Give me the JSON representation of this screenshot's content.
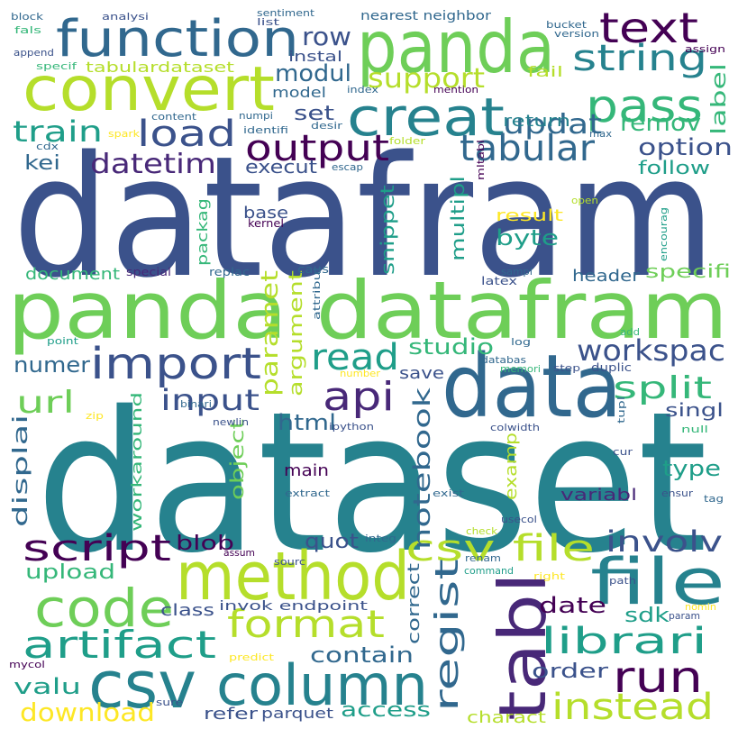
{
  "palette": {
    "deep_purple": "#440154",
    "indigo": "#3b528b",
    "blue": "#31688e",
    "teal_blue": "#26828e",
    "teal": "#1f9e89",
    "green": "#35b779",
    "lime": "#6ece58",
    "yellow_green": "#b5de2b",
    "yellow": "#fde725",
    "navy_purple": "#482878",
    "background": "#ffffff"
  },
  "words": [
    {
      "text": "datafram",
      "color": "#3b528b"
    },
    {
      "text": "dataset",
      "color": "#26828e"
    },
    {
      "text": "panda datafram",
      "color": "#6ece58"
    },
    {
      "text": "panda",
      "color": "#6ece58"
    },
    {
      "text": "convert",
      "color": "#b5de2b"
    },
    {
      "text": "function",
      "color": "#31688e"
    },
    {
      "text": "data",
      "color": "#31688e"
    },
    {
      "text": "method",
      "color": "#b5de2b"
    },
    {
      "text": "file",
      "color": "#26828e"
    },
    {
      "text": "tabl",
      "color": "#482878"
    },
    {
      "text": "csv",
      "color": "#26828e"
    },
    {
      "text": "column",
      "color": "#26828e"
    },
    {
      "text": "code",
      "color": "#6ece58"
    },
    {
      "text": "creat",
      "color": "#26828e"
    },
    {
      "text": "text",
      "color": "#440154"
    },
    {
      "text": "pass",
      "color": "#35b779"
    },
    {
      "text": "string",
      "color": "#26828e"
    },
    {
      "text": "tabular",
      "color": "#31688e"
    },
    {
      "text": "import",
      "color": "#3b528b"
    },
    {
      "text": "api",
      "color": "#482878"
    },
    {
      "text": "output",
      "color": "#440154"
    },
    {
      "text": "load",
      "color": "#3b528b"
    },
    {
      "text": "csv file",
      "color": "#b5de2b"
    },
    {
      "text": "format",
      "color": "#b5de2b"
    },
    {
      "text": "artifact",
      "color": "#1f9e89"
    },
    {
      "text": "script",
      "color": "#440154"
    },
    {
      "text": "run",
      "color": "#440154"
    },
    {
      "text": "librari",
      "color": "#1f9e89"
    },
    {
      "text": "instead",
      "color": "#b5de2b"
    },
    {
      "text": "regist",
      "color": "#31688e"
    },
    {
      "text": "workspac",
      "color": "#3b528b"
    },
    {
      "text": "read",
      "color": "#1f9e89"
    },
    {
      "text": "notebook",
      "color": "#31688e"
    },
    {
      "text": "involv",
      "color": "#3b528b"
    },
    {
      "text": "split",
      "color": "#35b779"
    },
    {
      "text": "input",
      "color": "#3b528b"
    },
    {
      "text": "url",
      "color": "#6ece58"
    },
    {
      "text": "train",
      "color": "#1f9e89"
    },
    {
      "text": "datetim",
      "color": "#482878"
    },
    {
      "text": "row",
      "color": "#3b528b"
    },
    {
      "text": "updat",
      "color": "#31688e"
    },
    {
      "text": "remov",
      "color": "#35b779"
    },
    {
      "text": "option",
      "color": "#3b528b"
    },
    {
      "text": "label",
      "color": "#35b779"
    },
    {
      "text": "support",
      "color": "#b5de2b"
    },
    {
      "text": "modul",
      "color": "#31688e"
    },
    {
      "text": "model",
      "color": "#31688e"
    },
    {
      "text": "set",
      "color": "#3b528b"
    },
    {
      "text": "kei",
      "color": "#31688e"
    },
    {
      "text": "execut",
      "color": "#3b528b"
    },
    {
      "text": "follow",
      "color": "#1f9e89"
    },
    {
      "text": "tabulardataset",
      "color": "#b5de2b"
    },
    {
      "text": "instal",
      "color": "#3b528b"
    },
    {
      "text": "fail",
      "color": "#b5de2b"
    },
    {
      "text": "return",
      "color": "#26828e"
    },
    {
      "text": "nearest neighbor",
      "color": "#31688e"
    },
    {
      "text": "paramet",
      "color": "#b5de2b"
    },
    {
      "text": "argument",
      "color": "#b5de2b"
    },
    {
      "text": "snippet",
      "color": "#1f9e89"
    },
    {
      "text": "multipl",
      "color": "#1f9e89"
    },
    {
      "text": "byte",
      "color": "#1f9e89"
    },
    {
      "text": "result",
      "color": "#fde725"
    },
    {
      "text": "header",
      "color": "#31688e"
    },
    {
      "text": "specifi",
      "color": "#6ece58"
    },
    {
      "text": "studio",
      "color": "#35b779"
    },
    {
      "text": "numer",
      "color": "#31688e"
    },
    {
      "text": "save",
      "color": "#3b528b"
    },
    {
      "text": "html",
      "color": "#31688e"
    },
    {
      "text": "singl",
      "color": "#3b528b"
    },
    {
      "text": "displai",
      "color": "#31688e"
    },
    {
      "text": "workaround",
      "color": "#35b779"
    },
    {
      "text": "object",
      "color": "#6ece58"
    },
    {
      "text": "main",
      "color": "#440154"
    },
    {
      "text": "type",
      "color": "#1f9e89"
    },
    {
      "text": "variabl",
      "color": "#482878"
    },
    {
      "text": "examp",
      "color": "#b5de2b"
    },
    {
      "text": "quot",
      "color": "#3b528b"
    },
    {
      "text": "blob",
      "color": "#440154"
    },
    {
      "text": "upload",
      "color": "#35b779"
    },
    {
      "text": "date",
      "color": "#440154"
    },
    {
      "text": "sdk",
      "color": "#1f9e89"
    },
    {
      "text": "contain",
      "color": "#31688e"
    },
    {
      "text": "order",
      "color": "#3b528b"
    },
    {
      "text": "class",
      "color": "#3b528b"
    },
    {
      "text": "valu",
      "color": "#1f9e89"
    },
    {
      "text": "correct",
      "color": "#31688e"
    },
    {
      "text": "access",
      "color": "#1f9e89"
    },
    {
      "text": "download",
      "color": "#fde725"
    },
    {
      "text": "refer",
      "color": "#3b528b"
    },
    {
      "text": "parquet",
      "color": "#3b528b"
    },
    {
      "text": "charact",
      "color": "#b5de2b"
    },
    {
      "text": "base",
      "color": "#3b528b"
    },
    {
      "text": "packag",
      "color": "#35b779"
    },
    {
      "text": "document",
      "color": "#35b779"
    },
    {
      "text": "special",
      "color": "#482878"
    },
    {
      "text": "replac",
      "color": "#31688e"
    },
    {
      "text": "kernel",
      "color": "#440154"
    },
    {
      "text": "caus",
      "color": "#31688e"
    },
    {
      "text": "attribut",
      "color": "#31688e"
    },
    {
      "text": "latex",
      "color": "#3b528b"
    },
    {
      "text": "sampl",
      "color": "#31688e"
    },
    {
      "text": "log",
      "color": "#31688e"
    },
    {
      "text": "databas",
      "color": "#31688e"
    },
    {
      "text": "memori",
      "color": "#35b779"
    },
    {
      "text": "step",
      "color": "#3b528b"
    },
    {
      "text": "duplic",
      "color": "#3b528b"
    },
    {
      "text": "add",
      "color": "#35b779"
    },
    {
      "text": "point",
      "color": "#1f9e89"
    },
    {
      "text": "number",
      "color": "#fde725"
    },
    {
      "text": "binari",
      "color": "#31688e"
    },
    {
      "text": "newlin",
      "color": "#3b528b"
    },
    {
      "text": "ipython",
      "color": "#3b528b"
    },
    {
      "text": "colwidth",
      "color": "#3b528b"
    },
    {
      "text": "null",
      "color": "#35b779"
    },
    {
      "text": "tupl",
      "color": "#31688e"
    },
    {
      "text": "zip",
      "color": "#fde725"
    },
    {
      "text": "cur",
      "color": "#3b528b"
    },
    {
      "text": "extract",
      "color": "#31688e"
    },
    {
      "text": "exist",
      "color": "#31688e"
    },
    {
      "text": "ensur",
      "color": "#3b528b"
    },
    {
      "text": "tag",
      "color": "#31688e"
    },
    {
      "text": "check",
      "color": "#b5de2b"
    },
    {
      "text": "usecol",
      "color": "#3b528b"
    },
    {
      "text": "sourc",
      "color": "#3b528b"
    },
    {
      "text": "integ",
      "color": "#31688e"
    },
    {
      "text": "assum",
      "color": "#440154"
    },
    {
      "text": "renam",
      "color": "#31688e"
    },
    {
      "text": "command",
      "color": "#1f9e89"
    },
    {
      "text": "right",
      "color": "#fde725"
    },
    {
      "text": "path",
      "color": "#3b528b"
    },
    {
      "text": "nomin",
      "color": "#fde725"
    },
    {
      "text": "param",
      "color": "#3b528b"
    },
    {
      "text": "invok endpoint",
      "color": "#3b528b"
    },
    {
      "text": "predict",
      "color": "#fde725"
    },
    {
      "text": "mycol",
      "color": "#440154"
    },
    {
      "text": "sure",
      "color": "#3b528b"
    },
    {
      "text": "block",
      "color": "#31688e"
    },
    {
      "text": "analysi",
      "color": "#3b528b"
    },
    {
      "text": "sentiment",
      "color": "#31688e"
    },
    {
      "text": "list",
      "color": "#3b528b"
    },
    {
      "text": "fals",
      "color": "#35b779"
    },
    {
      "text": "append",
      "color": "#3b528b"
    },
    {
      "text": "specif",
      "color": "#35b779"
    },
    {
      "text": "bucket",
      "color": "#31688e"
    },
    {
      "text": "version",
      "color": "#31688e"
    },
    {
      "text": "assign",
      "color": "#440154"
    },
    {
      "text": "index",
      "color": "#31688e"
    },
    {
      "text": "mention",
      "color": "#440154"
    },
    {
      "text": "content",
      "color": "#31688e"
    },
    {
      "text": "numpi",
      "color": "#31688e"
    },
    {
      "text": "identifi",
      "color": "#31688e"
    },
    {
      "text": "desir",
      "color": "#31688e"
    },
    {
      "text": "max",
      "color": "#31688e"
    },
    {
      "text": "spark",
      "color": "#fde725"
    },
    {
      "text": "folder",
      "color": "#b5de2b"
    },
    {
      "text": "cdx",
      "color": "#31688e"
    },
    {
      "text": "escap",
      "color": "#31688e"
    },
    {
      "text": "mltabl",
      "color": "#440154"
    },
    {
      "text": "open",
      "color": "#b5de2b"
    },
    {
      "text": "encourag",
      "color": "#1f9e89"
    }
  ]
}
